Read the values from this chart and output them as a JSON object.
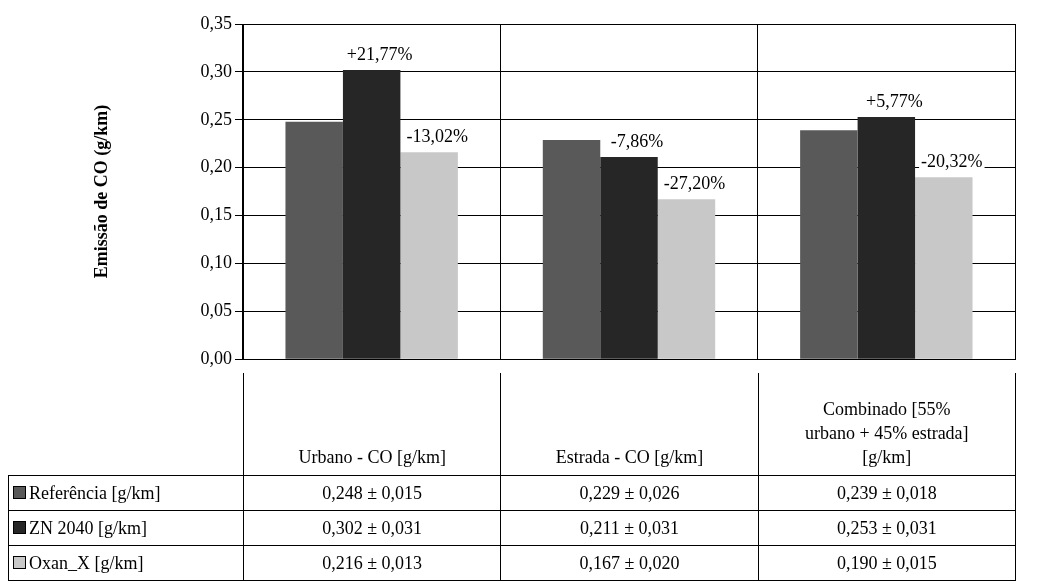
{
  "chart_data": {
    "type": "bar",
    "ylabel": "Emissão de CO (g/km)",
    "categories": [
      "Urbano - CO [g/km]",
      "Estrada - CO [g/km]",
      "Combinado [55% urbano + 45% estrada] [g/km]"
    ],
    "series": [
      {
        "name": "Referência [g/km]",
        "color": "#595959",
        "values": [
          0.248,
          0.229,
          0.239
        ],
        "value_labels": [
          "0,248 ± 0,015",
          "0,229 ± 0,026",
          "0,239 ± 0,018"
        ]
      },
      {
        "name": "ZN 2040 [g/km]",
        "color": "#262626",
        "values": [
          0.302,
          0.211,
          0.253
        ],
        "value_labels": [
          "0,302 ± 0,031",
          "0,211 ± 0,031",
          "0,253 ± 0,031"
        ]
      },
      {
        "name": "Oxan_X [g/km]",
        "color": "#c8c8c8",
        "values": [
          0.216,
          0.167,
          0.19
        ],
        "value_labels": [
          "0,216 ± 0,013",
          "0,167 ± 0,020",
          "0,190 ± 0,015"
        ]
      }
    ],
    "ylim": [
      0,
      0.35
    ],
    "yticks": [
      {
        "value": 0,
        "label": "0,00"
      },
      {
        "value": 0.05,
        "label": "0,05"
      },
      {
        "value": 0.1,
        "label": "0,10"
      },
      {
        "value": 0.15,
        "label": "0,15"
      },
      {
        "value": 0.2,
        "label": "0,20"
      },
      {
        "value": 0.25,
        "label": "0,25"
      },
      {
        "value": 0.3,
        "label": "0,30"
      },
      {
        "value": 0.35,
        "label": "0,35"
      }
    ],
    "grid": true,
    "legend": "bottom",
    "annotations": [
      "+21,77%",
      "-13,02%",
      "-7,86%",
      "-27,20%",
      "+5,77%",
      "-20,32%"
    ]
  }
}
